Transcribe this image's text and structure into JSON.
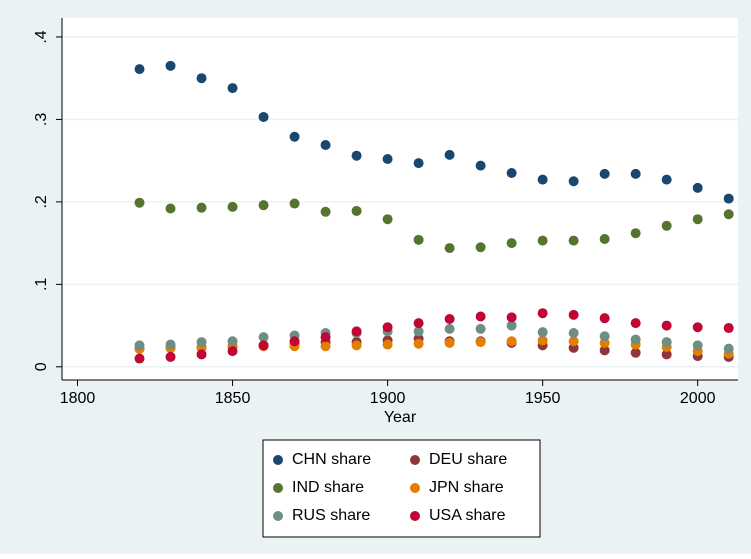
{
  "chart_data": {
    "type": "scatter",
    "xlabel": "Year",
    "x": [
      1820,
      1830,
      1840,
      1850,
      1860,
      1870,
      1880,
      1890,
      1900,
      1910,
      1920,
      1930,
      1940,
      1950,
      1960,
      1970,
      1980,
      1990,
      2000,
      2010
    ],
    "xlim": [
      1795,
      2013
    ],
    "xticks": [
      1800,
      1850,
      1900,
      1950,
      2000
    ],
    "ylim": [
      -0.016,
      0.423
    ],
    "yticks": [
      0,
      {
        "value": 0.1,
        "label": ".1"
      },
      {
        "value": 0.2,
        "label": ".2"
      },
      {
        "value": 0.3,
        "label": ".3"
      },
      {
        "value": 0.4,
        "label": ".4"
      }
    ],
    "grid": true,
    "legend": "bottom",
    "series": [
      {
        "name": "CHN share",
        "color": "#1a476f",
        "values": [
          0.361,
          0.365,
          0.35,
          0.338,
          0.303,
          0.279,
          0.269,
          0.256,
          0.252,
          0.247,
          0.257,
          0.244,
          0.235,
          0.227,
          0.225,
          0.234,
          0.234,
          0.227,
          0.217,
          0.204
        ]
      },
      {
        "name": "DEU share",
        "color": "#90353b",
        "values": [
          0.022,
          0.023,
          0.024,
          0.025,
          0.026,
          0.028,
          0.03,
          0.03,
          0.032,
          0.034,
          0.031,
          0.031,
          0.029,
          0.026,
          0.023,
          0.02,
          0.017,
          0.015,
          0.013,
          0.012
        ]
      },
      {
        "name": "IND share",
        "color": "#55752f",
        "values": [
          0.199,
          0.192,
          0.193,
          0.194,
          0.196,
          0.198,
          0.188,
          0.189,
          0.179,
          0.154,
          0.144,
          0.145,
          0.15,
          0.153,
          0.153,
          0.155,
          0.162,
          0.171,
          0.179,
          0.185
        ]
      },
      {
        "name": "JPN share",
        "color": "#e37e00",
        "values": [
          0.022,
          0.023,
          0.023,
          0.024,
          0.025,
          0.025,
          0.025,
          0.026,
          0.027,
          0.028,
          0.029,
          0.03,
          0.031,
          0.032,
          0.031,
          0.029,
          0.027,
          0.024,
          0.019,
          0.016
        ]
      },
      {
        "name": "RUS share",
        "color": "#6e8e84",
        "values": [
          0.026,
          0.027,
          0.03,
          0.031,
          0.036,
          0.038,
          0.041,
          0.041,
          0.043,
          0.043,
          0.046,
          0.046,
          0.05,
          0.042,
          0.041,
          0.037,
          0.033,
          0.03,
          0.026,
          0.022
        ]
      },
      {
        "name": "USA share",
        "color": "#c10534",
        "values": [
          0.01,
          0.012,
          0.015,
          0.019,
          0.026,
          0.031,
          0.036,
          0.043,
          0.048,
          0.053,
          0.058,
          0.061,
          0.06,
          0.065,
          0.063,
          0.059,
          0.053,
          0.05,
          0.048,
          0.047
        ]
      }
    ]
  }
}
